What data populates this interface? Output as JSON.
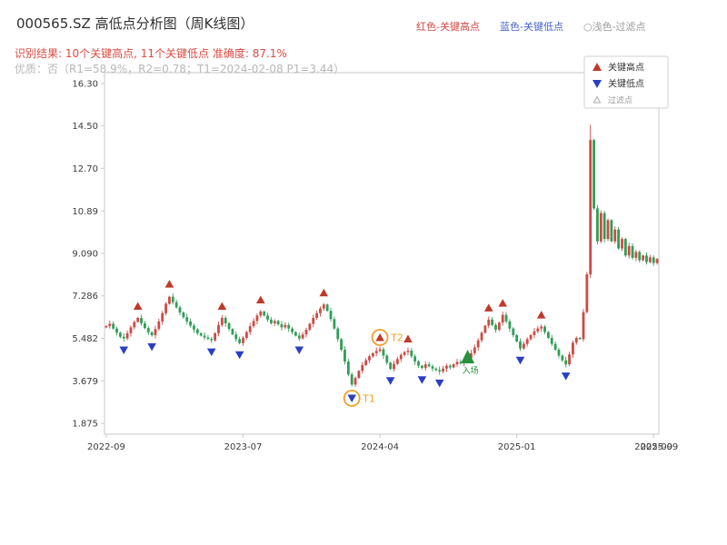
{
  "header": {
    "title": "000565.SZ 高低点分析图（周K线图）",
    "legend_top": [
      {
        "label": "红色-关键高点",
        "color": "#cf4a45"
      },
      {
        "label": "蓝色-关键低点",
        "color": "#4a64c8"
      },
      {
        "label": "○浅色-过滤点",
        "color": "#9a9a9a"
      }
    ],
    "result_line": {
      "text": "识别结果: 10个关键高点, 11个关键低点  准确度: 87.1%",
      "color": "#dd4b43"
    },
    "quality_line": {
      "text": "优质：否（R1=58.9%，R2=0.78；T1=2024-02-08 P1=3.44）",
      "color": "#b8b8b8"
    }
  },
  "chart_data": {
    "type": "candlestick",
    "symbol": "000565.SZ",
    "interval": "weekly",
    "title": "000565.SZ 高低点分析图（周K线图）",
    "key_high_count": 10,
    "key_low_count": 11,
    "accuracy": "87.1%",
    "grid": false,
    "ylim": [
      1.875,
      16.3
    ],
    "yticks": [
      {
        "v": 16.3,
        "label": "16.30"
      },
      {
        "v": 14.5,
        "label": "14.50"
      },
      {
        "v": 12.7,
        "label": "12.70"
      },
      {
        "v": 10.89,
        "label": "10.89"
      },
      {
        "v": 9.09,
        "label": "9.090"
      },
      {
        "v": 7.286,
        "label": "7.286"
      },
      {
        "v": 5.482,
        "label": "5.482"
      },
      {
        "v": 3.679,
        "label": "3.679"
      },
      {
        "v": 1.875,
        "label": "1.875"
      }
    ],
    "xticks": [
      {
        "i": 0,
        "label": "2022-09",
        "tick": true
      },
      {
        "i": 39,
        "label": "2023-07",
        "tick": true
      },
      {
        "i": 78,
        "label": "2024-04",
        "tick": true
      },
      {
        "i": 117,
        "label": "2025-01",
        "tick": true
      },
      {
        "i": 156,
        "label": "2025-09",
        "tick": true
      },
      {
        "i": 157.6,
        "label": "2025-09",
        "tick": false
      }
    ],
    "closes": [
      6.0,
      6.1,
      5.9,
      5.72,
      5.55,
      5.48,
      5.7,
      5.95,
      6.18,
      6.35,
      6.12,
      5.92,
      5.74,
      5.62,
      5.88,
      6.2,
      6.55,
      6.95,
      7.25,
      7.02,
      6.8,
      6.58,
      6.38,
      6.2,
      6.02,
      5.86,
      5.7,
      5.6,
      5.52,
      5.46,
      5.4,
      5.7,
      6.05,
      6.35,
      6.12,
      5.88,
      5.65,
      5.45,
      5.28,
      5.5,
      5.75,
      6.0,
      6.22,
      6.45,
      6.62,
      6.45,
      6.28,
      6.12,
      6.22,
      6.08,
      5.95,
      6.05,
      5.9,
      5.75,
      5.6,
      5.48,
      5.65,
      5.85,
      6.1,
      6.35,
      6.55,
      6.75,
      6.92,
      6.65,
      6.3,
      5.9,
      5.45,
      5.0,
      4.5,
      3.95,
      3.52,
      3.8,
      4.1,
      4.35,
      4.55,
      4.72,
      4.85,
      4.95,
      5.02,
      4.75,
      4.45,
      4.18,
      4.4,
      4.6,
      4.78,
      4.9,
      4.96,
      4.72,
      4.5,
      4.32,
      4.22,
      4.38,
      4.3,
      4.2,
      4.14,
      4.08,
      4.2,
      4.32,
      4.25,
      4.38,
      4.48,
      4.42,
      4.55,
      4.65,
      4.85,
      5.1,
      5.4,
      5.72,
      6.02,
      6.28,
      6.05,
      5.85,
      6.15,
      6.48,
      6.2,
      5.9,
      5.62,
      5.35,
      5.05,
      5.25,
      5.45,
      5.62,
      5.78,
      5.9,
      5.98,
      5.75,
      5.5,
      5.25,
      5.0,
      4.75,
      4.55,
      4.38,
      4.8,
      5.3,
      5.5,
      5.45,
      6.6,
      8.2,
      13.9,
      11.0,
      9.6,
      10.8,
      9.7,
      10.5,
      9.6,
      10.1,
      9.3,
      9.7,
      9.0,
      9.4,
      8.9,
      9.15,
      8.8,
      9.0,
      8.72,
      8.92,
      8.68,
      8.85
    ],
    "wick_overrides": {
      "18": {
        "high": 7.29
      },
      "70": {
        "low": 3.44
      },
      "138": {
        "high": 14.55,
        "low": 8.05
      }
    },
    "key_highs": [
      {
        "i": 9,
        "p": 6.35
      },
      {
        "i": 18,
        "p": 7.29
      },
      {
        "i": 33,
        "p": 6.35
      },
      {
        "i": 44,
        "p": 6.62
      },
      {
        "i": 62,
        "p": 6.92
      },
      {
        "i": 78,
        "p": 5.02
      },
      {
        "i": 86,
        "p": 4.96
      },
      {
        "i": 109,
        "p": 6.28
      },
      {
        "i": 113,
        "p": 6.48
      },
      {
        "i": 124,
        "p": 5.98
      }
    ],
    "key_lows": [
      {
        "i": 5,
        "p": 5.48
      },
      {
        "i": 13,
        "p": 5.62
      },
      {
        "i": 30,
        "p": 5.4
      },
      {
        "i": 38,
        "p": 5.28
      },
      {
        "i": 55,
        "p": 5.48
      },
      {
        "i": 70,
        "p": 3.44
      },
      {
        "i": 81,
        "p": 4.18
      },
      {
        "i": 90,
        "p": 4.22
      },
      {
        "i": 95,
        "p": 4.08
      },
      {
        "i": 118,
        "p": 5.05
      },
      {
        "i": 131,
        "p": 4.38
      }
    ],
    "annotations": [
      {
        "type": "circle",
        "i": 70,
        "p": 3.44,
        "dir": "low",
        "label": "T1",
        "color": "#f0a02a"
      },
      {
        "type": "circle",
        "i": 78,
        "p": 5.02,
        "dir": "high",
        "label": "T2",
        "color": "#f0a02a"
      },
      {
        "type": "entry",
        "i": 103,
        "p": 4.42,
        "label": "入场",
        "color": "#27913c"
      }
    ],
    "legend_box": [
      {
        "label": "关键高点",
        "marker": "up-triangle",
        "color": "#c0392b"
      },
      {
        "label": "关键低点",
        "marker": "down-triangle",
        "color": "#2b3fc2"
      },
      {
        "label": "过滤点",
        "marker": "open-triangle",
        "color": "#aaaaaa"
      }
    ],
    "colors": {
      "up": "#cc4b44",
      "down": "#2f9e57",
      "high_marker": "#c0392b",
      "low_marker": "#2b3fc2",
      "axis": "#c9c9c9",
      "tick_text": "#3c3c3c"
    }
  }
}
